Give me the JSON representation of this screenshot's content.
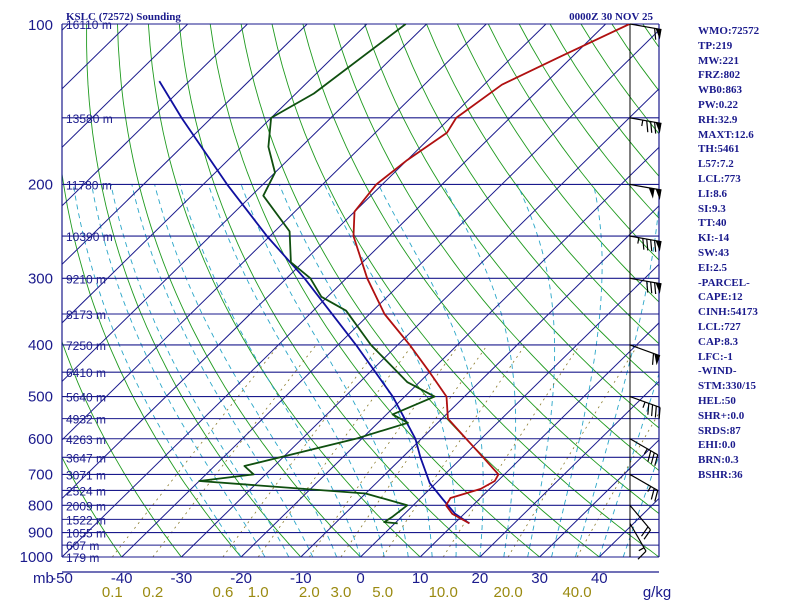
{
  "header": {
    "station": "KSLC (72572) Sounding",
    "valid_time": "0000Z 30 NOV 25"
  },
  "indices": [
    "WMO:72572",
    "TP:219",
    "MW:221",
    "FRZ:802",
    "WB0:863",
    "PW:0.22",
    "RH:32.9",
    "MAXT:12.6",
    "TH:5461",
    "L57:7.2",
    "LCL:773",
    "LI:8.6",
    "SI:9.3",
    "TT:40",
    "KI:-14",
    "SW:43",
    "EI:2.5",
    "-PARCEL-",
    "CAPE:12",
    "CINH:54173",
    "LCL:727",
    "CAP:8.3",
    "LFC:-1",
    "-WIND-",
    "STM:330/15",
    "HEL:50",
    "SHR+:0.0",
    "SRDS:87",
    "EHI:0.0",
    "BRN:0.3",
    "BSHR:36"
  ],
  "colors": {
    "isobar": "#1a1a8c",
    "isotherm": "#1a1a8c",
    "dry_adiabat": "#1f9a1f",
    "moist_adiabat": "#2aa6c8",
    "mixing_ratio": "#8a7a2a",
    "temperature": "#b01010",
    "dewpoint": "#0f4f0f",
    "parcel": "#1010a0",
    "wind": "#000000"
  },
  "chart_data": {
    "type": "skew-t log-p sounding",
    "pressure_axis_label": "mb",
    "pressure_levels": [
      100,
      200,
      300,
      400,
      500,
      600,
      700,
      800,
      900,
      1000
    ],
    "pressure_range": [
      1000,
      100
    ],
    "temperature_axis_ticks": [
      -50,
      -40,
      -30,
      -20,
      -10,
      0,
      10,
      20,
      30,
      40
    ],
    "temperature_range_at_surface": [
      -50,
      50
    ],
    "mixing_ratio_unit": "g/kg",
    "mixing_ratio_labels": [
      {
        "label": "0.1",
        "value": 0.1
      },
      {
        "label": "0.2",
        "value": 0.2
      },
      {
        "label": "0.6",
        "value": 0.6
      },
      {
        "label": "1.0",
        "value": 1.0
      },
      {
        "label": "2.0",
        "value": 2.0
      },
      {
        "label": "3.0",
        "value": 3.0
      },
      {
        "label": "5.0",
        "value": 5.0
      },
      {
        "label": "10.0",
        "value": 10.0
      },
      {
        "label": "20.0",
        "value": 20.0
      },
      {
        "label": "40.0",
        "value": 40.0
      }
    ],
    "height_labels": [
      {
        "pressure": 100,
        "label": "16110 m"
      },
      {
        "pressure": 150,
        "label": "13580 m"
      },
      {
        "pressure": 200,
        "label": "11780 m"
      },
      {
        "pressure": 250,
        "label": "10390 m"
      },
      {
        "pressure": 300,
        "label": "9210 m"
      },
      {
        "pressure": 350,
        "label": "8173 m"
      },
      {
        "pressure": 400,
        "label": "7250 m"
      },
      {
        "pressure": 450,
        "label": "6410 m"
      },
      {
        "pressure": 500,
        "label": "5640 m"
      },
      {
        "pressure": 550,
        "label": "4932 m"
      },
      {
        "pressure": 600,
        "label": "4263 m"
      },
      {
        "pressure": 650,
        "label": "3647 m"
      },
      {
        "pressure": 700,
        "label": "3071 m"
      },
      {
        "pressure": 750,
        "label": "2524 m"
      },
      {
        "pressure": 800,
        "label": "2009 m"
      },
      {
        "pressure": 850,
        "label": "1522 m"
      },
      {
        "pressure": 900,
        "label": "1055 m"
      },
      {
        "pressure": 950,
        "label": "607 m"
      },
      {
        "pressure": 1000,
        "label": "179 m"
      }
    ],
    "temperature_profile": [
      {
        "p": 865,
        "t": 12.5
      },
      {
        "p": 830,
        "t": 8.0
      },
      {
        "p": 800,
        "t": 5.5
      },
      {
        "p": 775,
        "t": 5.0
      },
      {
        "p": 745,
        "t": 8.5
      },
      {
        "p": 720,
        "t": 9.5
      },
      {
        "p": 700,
        "t": 9.0
      },
      {
        "p": 650,
        "t": 3.5
      },
      {
        "p": 600,
        "t": -2.5
      },
      {
        "p": 550,
        "t": -9.0
      },
      {
        "p": 500,
        "t": -13.0
      },
      {
        "p": 450,
        "t": -20.0
      },
      {
        "p": 400,
        "t": -28.0
      },
      {
        "p": 350,
        "t": -37.5
      },
      {
        "p": 300,
        "t": -46.5
      },
      {
        "p": 250,
        "t": -56.0
      },
      {
        "p": 225,
        "t": -60.0
      },
      {
        "p": 200,
        "t": -61.0
      },
      {
        "p": 180,
        "t": -60.0
      },
      {
        "p": 160,
        "t": -58.0
      },
      {
        "p": 150,
        "t": -59.0
      },
      {
        "p": 130,
        "t": -57.0
      },
      {
        "p": 115,
        "t": -52.0
      },
      {
        "p": 100,
        "t": -46.0
      }
    ],
    "dewpoint_profile": [
      {
        "p": 865,
        "t": 0.5
      },
      {
        "p": 860,
        "t": -2.0
      },
      {
        "p": 840,
        "t": -1.5
      },
      {
        "p": 800,
        "t": -1.0
      },
      {
        "p": 760,
        "t": -10.0
      },
      {
        "p": 720,
        "t": -40.0
      },
      {
        "p": 700,
        "t": -32.0
      },
      {
        "p": 675,
        "t": -35.0
      },
      {
        "p": 600,
        "t": -21.0
      },
      {
        "p": 560,
        "t": -15.0
      },
      {
        "p": 540,
        "t": -19.0
      },
      {
        "p": 500,
        "t": -15.0
      },
      {
        "p": 470,
        "t": -22.0
      },
      {
        "p": 400,
        "t": -34.5
      },
      {
        "p": 345,
        "t": -44.5
      },
      {
        "p": 325,
        "t": -51.0
      },
      {
        "p": 300,
        "t": -56.0
      },
      {
        "p": 280,
        "t": -62.0
      },
      {
        "p": 245,
        "t": -67.5
      },
      {
        "p": 210,
        "t": -78.0
      },
      {
        "p": 190,
        "t": -80.0
      },
      {
        "p": 170,
        "t": -85.5
      },
      {
        "p": 150,
        "t": -90.0
      },
      {
        "p": 135,
        "t": -87.0
      },
      {
        "p": 100,
        "t": -83.5
      }
    ],
    "parcel_profile": [
      {
        "p": 865,
        "t": 12.5
      },
      {
        "p": 830,
        "t": 8.5
      },
      {
        "p": 780,
        "t": 4.0
      },
      {
        "p": 727,
        "t": -1.0
      },
      {
        "p": 650,
        "t": -7.0
      },
      {
        "p": 600,
        "t": -11.0
      },
      {
        "p": 500,
        "t": -22.0
      },
      {
        "p": 400,
        "t": -37.0
      },
      {
        "p": 300,
        "t": -57.0
      },
      {
        "p": 250,
        "t": -70.5
      },
      {
        "p": 200,
        "t": -86.0
      },
      {
        "p": 150,
        "t": -105.0
      },
      {
        "p": 128,
        "t": -115.0
      }
    ],
    "wind_profile": [
      {
        "p": 865,
        "dir": 330,
        "spd": 15
      },
      {
        "p": 800,
        "dir": 320,
        "spd": 20
      },
      {
        "p": 700,
        "dir": 300,
        "spd": 25
      },
      {
        "p": 600,
        "dir": 300,
        "spd": 35
      },
      {
        "p": 500,
        "dir": 290,
        "spd": 45
      },
      {
        "p": 400,
        "dir": 290,
        "spd": 60
      },
      {
        "p": 300,
        "dir": 280,
        "spd": 80
      },
      {
        "p": 250,
        "dir": 280,
        "spd": 95
      },
      {
        "p": 200,
        "dir": 280,
        "spd": 100
      },
      {
        "p": 150,
        "dir": 280,
        "spd": 85
      },
      {
        "p": 100,
        "dir": 280,
        "spd": 60
      }
    ]
  }
}
